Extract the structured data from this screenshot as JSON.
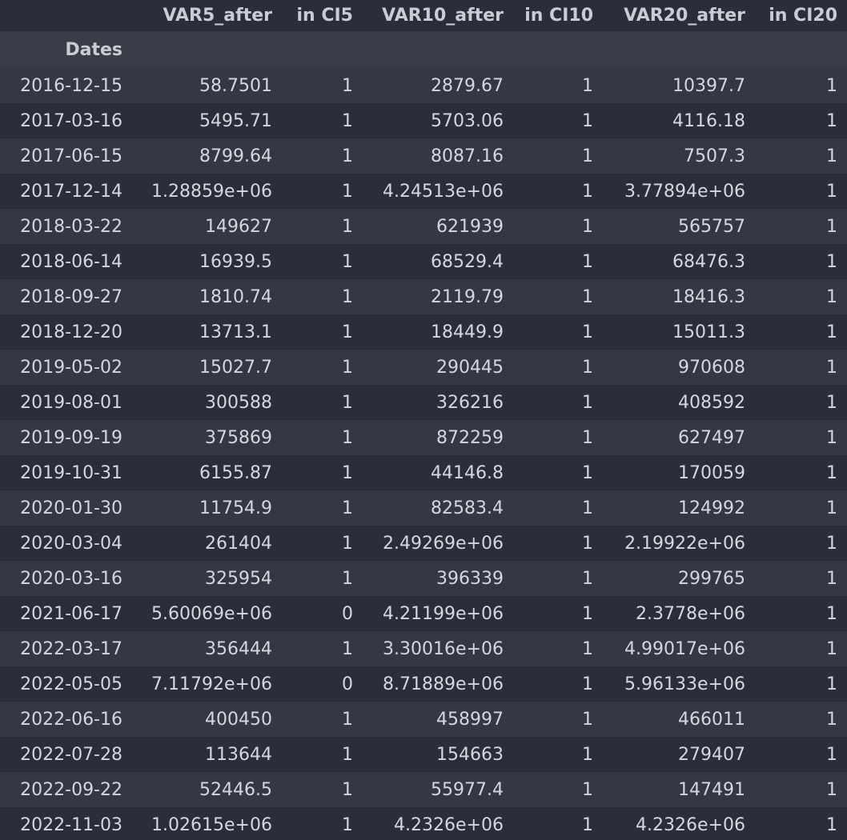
{
  "table": {
    "columns": [
      "VAR5_after",
      "in CI5",
      "VAR10_after",
      "in CI10",
      "VAR20_after",
      "in CI20"
    ],
    "index_name": "Dates",
    "rows": [
      {
        "date": "2016-12-15",
        "values": [
          "58.7501",
          "1",
          "2879.67",
          "1",
          "10397.7",
          "1"
        ]
      },
      {
        "date": "2017-03-16",
        "values": [
          "5495.71",
          "1",
          "5703.06",
          "1",
          "4116.18",
          "1"
        ]
      },
      {
        "date": "2017-06-15",
        "values": [
          "8799.64",
          "1",
          "8087.16",
          "1",
          "7507.3",
          "1"
        ]
      },
      {
        "date": "2017-12-14",
        "values": [
          "1.28859e+06",
          "1",
          "4.24513e+06",
          "1",
          "3.77894e+06",
          "1"
        ]
      },
      {
        "date": "2018-03-22",
        "values": [
          "149627",
          "1",
          "621939",
          "1",
          "565757",
          "1"
        ]
      },
      {
        "date": "2018-06-14",
        "values": [
          "16939.5",
          "1",
          "68529.4",
          "1",
          "68476.3",
          "1"
        ]
      },
      {
        "date": "2018-09-27",
        "values": [
          "1810.74",
          "1",
          "2119.79",
          "1",
          "18416.3",
          "1"
        ]
      },
      {
        "date": "2018-12-20",
        "values": [
          "13713.1",
          "1",
          "18449.9",
          "1",
          "15011.3",
          "1"
        ]
      },
      {
        "date": "2019-05-02",
        "values": [
          "15027.7",
          "1",
          "290445",
          "1",
          "970608",
          "1"
        ]
      },
      {
        "date": "2019-08-01",
        "values": [
          "300588",
          "1",
          "326216",
          "1",
          "408592",
          "1"
        ]
      },
      {
        "date": "2019-09-19",
        "values": [
          "375869",
          "1",
          "872259",
          "1",
          "627497",
          "1"
        ]
      },
      {
        "date": "2019-10-31",
        "values": [
          "6155.87",
          "1",
          "44146.8",
          "1",
          "170059",
          "1"
        ]
      },
      {
        "date": "2020-01-30",
        "values": [
          "11754.9",
          "1",
          "82583.4",
          "1",
          "124992",
          "1"
        ]
      },
      {
        "date": "2020-03-04",
        "values": [
          "261404",
          "1",
          "2.49269e+06",
          "1",
          "2.19922e+06",
          "1"
        ]
      },
      {
        "date": "2020-03-16",
        "values": [
          "325954",
          "1",
          "396339",
          "1",
          "299765",
          "1"
        ]
      },
      {
        "date": "2021-06-17",
        "values": [
          "5.60069e+06",
          "0",
          "4.21199e+06",
          "1",
          "2.3778e+06",
          "1"
        ]
      },
      {
        "date": "2022-03-17",
        "values": [
          "356444",
          "1",
          "3.30016e+06",
          "1",
          "4.99017e+06",
          "1"
        ]
      },
      {
        "date": "2022-05-05",
        "values": [
          "7.11792e+06",
          "0",
          "8.71889e+06",
          "1",
          "5.96133e+06",
          "1"
        ]
      },
      {
        "date": "2022-06-16",
        "values": [
          "400450",
          "1",
          "458997",
          "1",
          "466011",
          "1"
        ]
      },
      {
        "date": "2022-07-28",
        "values": [
          "113644",
          "1",
          "154663",
          "1",
          "279407",
          "1"
        ]
      },
      {
        "date": "2022-09-22",
        "values": [
          "52446.5",
          "1",
          "55977.4",
          "1",
          "147491",
          "1"
        ]
      },
      {
        "date": "2022-11-03",
        "values": [
          "1.02615e+06",
          "1",
          "4.2326e+06",
          "1",
          "4.2326e+06",
          "1"
        ]
      }
    ]
  },
  "colors": {
    "background": "#2a2d3a",
    "row_stripe": "#343744",
    "index_header_bg": "#3a3d48",
    "text": "#d4d7de"
  }
}
